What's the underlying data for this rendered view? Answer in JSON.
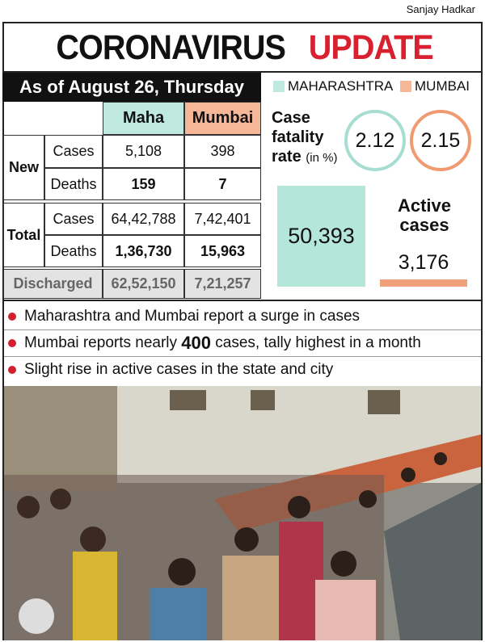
{
  "credit": "Sanjay Hadkar",
  "header": {
    "title_main": "CORONAVIRUS",
    "title_accent": "UPDATE",
    "date": "As of August 26, Thursday"
  },
  "table": {
    "columns": [
      "Maha",
      "Mumbai"
    ],
    "groups": [
      {
        "label": "New",
        "rows": [
          {
            "label": "Cases",
            "values": [
              "5,108",
              "398"
            ]
          },
          {
            "label": "Deaths",
            "values": [
              "159",
              "7"
            ]
          }
        ]
      },
      {
        "label": "Total",
        "rows": [
          {
            "label": "Cases",
            "values": [
              "64,42,788",
              "7,42,401"
            ]
          },
          {
            "label": "Deaths",
            "values": [
              "1,36,730",
              "15,963"
            ]
          }
        ]
      }
    ],
    "discharged": {
      "label": "Discharged",
      "values": [
        "62,52,150",
        "7,21,257"
      ]
    }
  },
  "legend": [
    "MAHARASHTRA",
    "MUMBAI"
  ],
  "fatality": {
    "label": "Case fatality rate",
    "unit": "(in %)",
    "values": [
      "2.12",
      "2.15"
    ]
  },
  "active": {
    "label": "Active cases",
    "values": [
      "50,393",
      "3,176"
    ]
  },
  "bullets": [
    {
      "text": "Maharashtra and Mumbai report a surge in cases"
    },
    {
      "before": "Mumbai reports nearly ",
      "bold": "400",
      "after": " cases, tally highest in a month"
    },
    {
      "text": "Slight rise in active cases in the state and city"
    }
  ]
}
